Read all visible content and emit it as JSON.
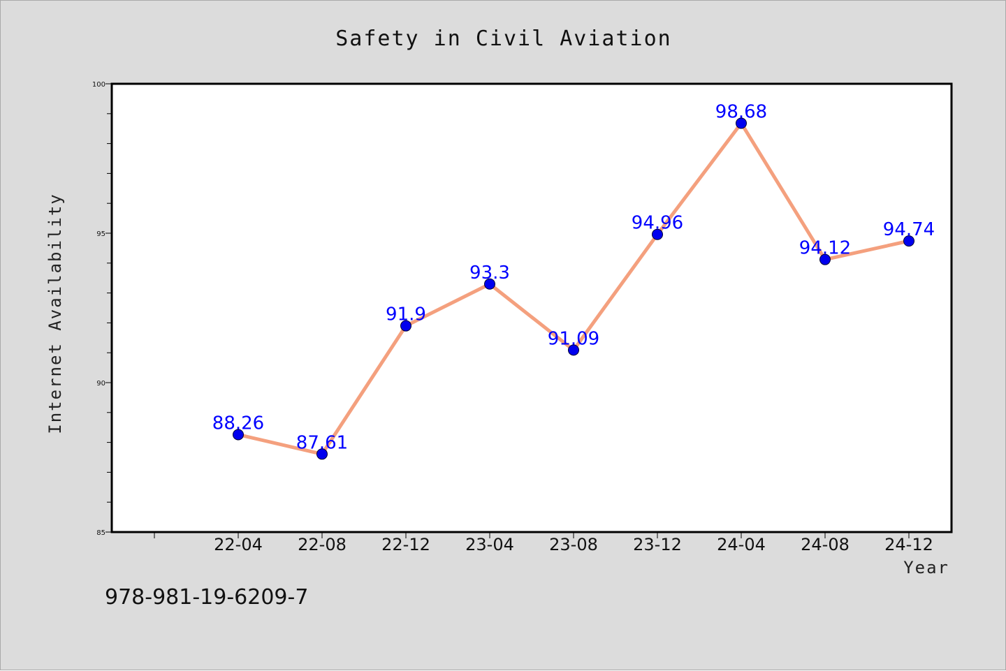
{
  "chart_data": {
    "type": "line",
    "title": "Safety in Civil Aviation",
    "xlabel": "Year",
    "ylabel": "Internet Availability",
    "categories": [
      "22-04",
      "22-08",
      "22-12",
      "23-04",
      "23-08",
      "23-12",
      "24-04",
      "24-08",
      "24-12"
    ],
    "series": [
      {
        "values": [
          88.26,
          87.61,
          91.9,
          93.3,
          91.09,
          94.96,
          98.68,
          94.12,
          94.74
        ],
        "labels": [
          "88.26",
          "87.61",
          "91.9",
          "93.3",
          "91.09",
          "94.96",
          "98.68",
          "94.12",
          "94.74"
        ],
        "line_color": "#f4a07e",
        "marker_color": "#0000ee"
      }
    ],
    "ylim": [
      85,
      100
    ],
    "yticks": [
      "85",
      "90",
      "95",
      "100"
    ],
    "grid": false,
    "legend": "none"
  },
  "footer": {
    "isbn": "978-981-19-6209-7"
  },
  "colors": {
    "figure_background": "#dcdcdc",
    "plot_background": "#ffffff",
    "line": "#f4a07e",
    "marker": "#0000ee",
    "data_label": "#0000ff"
  }
}
